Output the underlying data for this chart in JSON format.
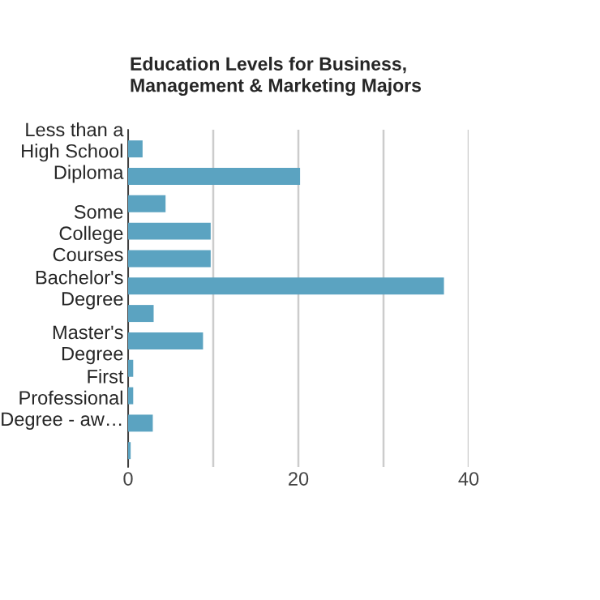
{
  "chart_data": {
    "type": "bar",
    "orientation": "horizontal",
    "title": "Education Levels for Business,\nManagement & Marketing Majors",
    "categories": [
      "Less than a\nHigh School\nDiploma",
      null,
      null,
      "Some\nCollege\nCourses",
      null,
      "Bachelor's\nDegree",
      null,
      "Master's\nDegree",
      null,
      "First\nProfessional\nDegree - aw…",
      null,
      null
    ],
    "values": [
      1.7,
      20.2,
      4.4,
      9.7,
      9.7,
      37.1,
      3.0,
      8.8,
      0.6,
      0.6,
      2.9,
      0.3
    ],
    "color": "#5ba3c1",
    "xlim": [
      0,
      40
    ],
    "xticks": [
      0,
      {
        "value": 10,
        "label": null
      },
      20,
      {
        "value": 30,
        "label": null
      },
      40
    ],
    "grid": "x"
  }
}
